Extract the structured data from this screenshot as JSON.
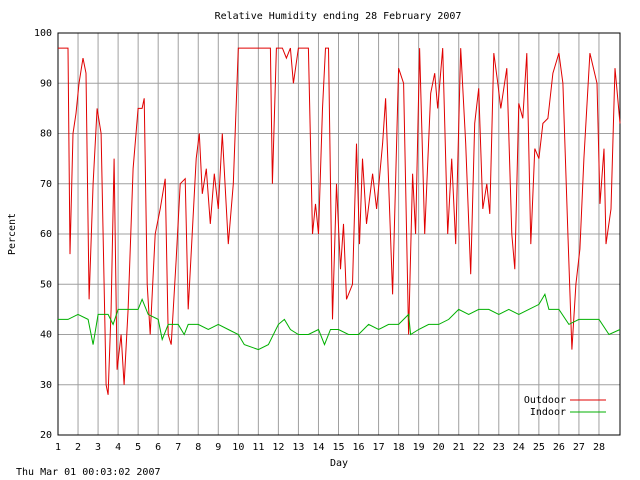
{
  "chart_data": {
    "type": "line",
    "title": "Relative Humidity ending 28 February 2007",
    "x_label": "Day",
    "y_label": "Percent",
    "timestamp": "Thu Mar 01 00:03:02 2007",
    "xlim": [
      1,
      29.05
    ],
    "ylim": [
      20,
      100
    ],
    "xticks": [
      1,
      2,
      3,
      4,
      5,
      6,
      7,
      8,
      9,
      10,
      11,
      12,
      13,
      14,
      15,
      16,
      17,
      18,
      19,
      20,
      21,
      22,
      23,
      24,
      25,
      26,
      27,
      28
    ],
    "yticks": [
      20,
      30,
      40,
      50,
      60,
      70,
      80,
      90,
      100
    ],
    "grid": true,
    "legend": "lower right",
    "series": [
      {
        "name": "Outdoor",
        "color": "#e00000",
        "x": [
          1.0,
          1.5,
          1.6,
          1.75,
          1.9,
          2.05,
          2.25,
          2.4,
          2.55,
          2.75,
          2.95,
          3.15,
          3.4,
          3.5,
          3.65,
          3.8,
          3.95,
          4.15,
          4.3,
          4.5,
          4.75,
          5.0,
          5.2,
          5.3,
          5.45,
          5.6,
          5.85,
          6.1,
          6.35,
          6.5,
          6.65,
          6.9,
          7.1,
          7.35,
          7.5,
          7.7,
          7.9,
          8.05,
          8.2,
          8.4,
          8.6,
          8.8,
          9.0,
          9.2,
          9.5,
          9.75,
          10.0,
          11.6,
          11.7,
          11.9,
          12.2,
          12.4,
          12.6,
          12.75,
          13.0,
          13.5,
          13.7,
          13.85,
          14.0,
          14.2,
          14.35,
          14.5,
          14.7,
          14.9,
          15.1,
          15.25,
          15.4,
          15.7,
          15.9,
          16.05,
          16.2,
          16.4,
          16.7,
          16.9,
          17.2,
          17.35,
          17.7,
          18.0,
          18.25,
          18.5,
          18.7,
          18.85,
          19.05,
          19.3,
          19.6,
          19.8,
          19.95,
          20.2,
          20.45,
          20.65,
          20.85,
          21.1,
          21.35,
          21.6,
          21.8,
          22.0,
          22.2,
          22.4,
          22.55,
          22.75,
          22.95,
          23.1,
          23.4,
          23.65,
          23.8,
          24.0,
          24.2,
          24.4,
          24.6,
          24.8,
          25.0,
          25.2,
          25.45,
          25.7,
          26.0,
          26.2,
          26.45,
          26.65,
          26.85,
          27.05,
          27.25,
          27.55,
          27.9,
          28.05,
          28.25,
          28.35,
          28.6,
          28.8,
          29.05
        ],
        "values": [
          97,
          97,
          56,
          80,
          84,
          90,
          95,
          92,
          47,
          70,
          85,
          80,
          30,
          28,
          45,
          75,
          33,
          40,
          30,
          45,
          73,
          85,
          85,
          87,
          50,
          40,
          60,
          65,
          71,
          40,
          38,
          55,
          70,
          71,
          45,
          60,
          75,
          80,
          68,
          73,
          62,
          72,
          65,
          80,
          58,
          70,
          97,
          97,
          70,
          97,
          97,
          95,
          97,
          90,
          97,
          97,
          60,
          66,
          60,
          85,
          97,
          97,
          43,
          70,
          53,
          62,
          47,
          50,
          78,
          58,
          75,
          62,
          72,
          65,
          78,
          87,
          48,
          93,
          90,
          40,
          72,
          60,
          97,
          60,
          88,
          92,
          85,
          97,
          60,
          75,
          58,
          97,
          78,
          52,
          82,
          89,
          65,
          70,
          64,
          96,
          90,
          85,
          93,
          60,
          53,
          86,
          83,
          96,
          58,
          77,
          75,
          82,
          83,
          92,
          96,
          90,
          60,
          37,
          50,
          57,
          75,
          96,
          90,
          66,
          77,
          58,
          65,
          93,
          82
        ]
      },
      {
        "name": "Indoor",
        "color": "#00b000",
        "x": [
          1,
          1.5,
          2,
          2.5,
          2.75,
          3,
          3.5,
          3.75,
          4,
          4.5,
          5,
          5.2,
          5.5,
          6,
          6.2,
          6.5,
          7,
          7.3,
          7.5,
          8,
          8.5,
          9,
          9.5,
          10,
          10.3,
          11,
          11.5,
          12,
          12.3,
          12.6,
          13,
          13.5,
          14,
          14.3,
          14.6,
          15,
          15.5,
          16,
          16.5,
          17,
          17.5,
          18,
          18.5,
          18.6,
          19,
          19.5,
          20,
          20.5,
          21,
          21.5,
          22,
          22.5,
          23,
          23.5,
          24,
          24.5,
          25,
          25.3,
          25.5,
          26,
          26.5,
          27,
          27.5,
          28,
          28.5,
          29.05
        ],
        "values": [
          43,
          43,
          44,
          43,
          38,
          44,
          44,
          42,
          45,
          45,
          45,
          47,
          44,
          43,
          39,
          42,
          42,
          40,
          42,
          42,
          41,
          42,
          41,
          40,
          38,
          37,
          38,
          42,
          43,
          41,
          40,
          40,
          41,
          38,
          41,
          41,
          40,
          40,
          42,
          41,
          42,
          42,
          44,
          40,
          41,
          42,
          42,
          43,
          45,
          44,
          45,
          45,
          44,
          45,
          44,
          45,
          46,
          48,
          45,
          45,
          42,
          43,
          43,
          43,
          40,
          41
        ]
      }
    ]
  }
}
